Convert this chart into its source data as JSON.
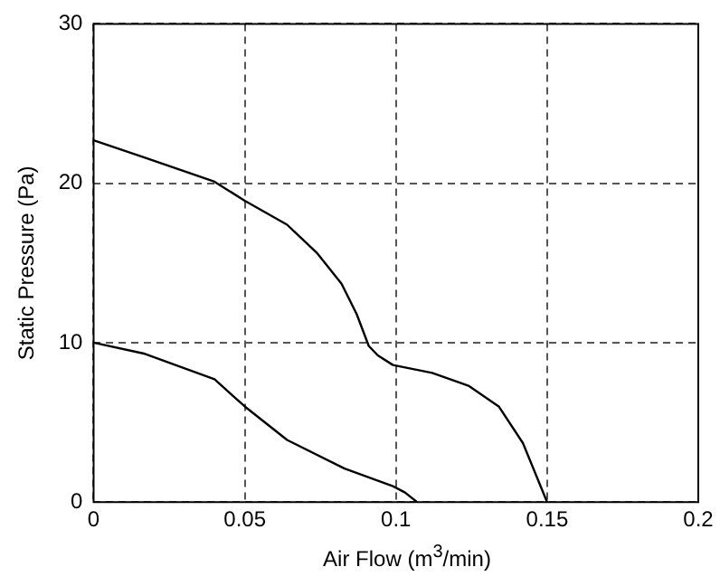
{
  "chart_data": {
    "type": "line",
    "xlabel": "Air Flow (m$^{3}$/min)",
    "ylabel": "Static Pressure (Pa)",
    "xlim": [
      0,
      0.2
    ],
    "xticks": [
      0,
      0.05,
      0.1,
      0.15,
      0.2
    ],
    "ylim": [
      0,
      30
    ],
    "yticks": [
      0,
      10,
      20,
      30
    ],
    "grid": true,
    "legend": false,
    "marker": "none",
    "line_style": "solid",
    "series": [
      {
        "color": "#000000",
        "x": [
          0,
          0.017,
          0.04,
          0.05,
          0.064,
          0.074,
          0.082,
          0.087,
          0.091,
          0.094,
          0.099,
          0.112,
          0.124,
          0.134,
          0.142,
          0.15
        ],
        "values": [
          22.7,
          21.6,
          20.1,
          18.9,
          17.4,
          15.6,
          13.7,
          11.8,
          9.8,
          9.2,
          8.6,
          8.1,
          7.3,
          6.0,
          3.7,
          0
        ]
      },
      {
        "color": "#000000",
        "x": [
          0,
          0.017,
          0.04,
          0.05,
          0.064,
          0.083,
          0.099,
          0.103,
          0.107
        ],
        "values": [
          10.0,
          9.3,
          7.7,
          6.0,
          3.9,
          2.1,
          1.0,
          0.6,
          0
        ]
      }
    ]
  }
}
